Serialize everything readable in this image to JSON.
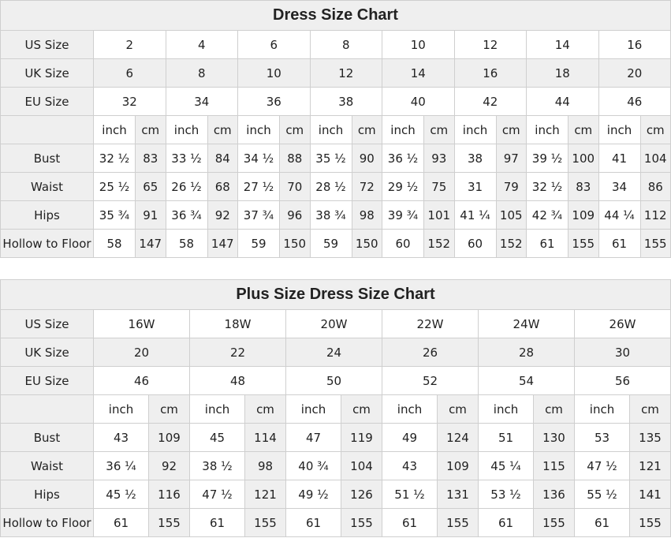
{
  "charts": [
    {
      "title": "Dress Size Chart",
      "row_labels": {
        "us": "US Size",
        "uk": "UK Size",
        "eu": "EU Size"
      },
      "us": [
        "2",
        "4",
        "6",
        "8",
        "10",
        "12",
        "14",
        "16"
      ],
      "uk": [
        "6",
        "8",
        "10",
        "12",
        "14",
        "16",
        "18",
        "20"
      ],
      "eu": [
        "32",
        "34",
        "36",
        "38",
        "40",
        "42",
        "44",
        "46"
      ],
      "unit_labels": {
        "inch": "inch",
        "cm": "cm"
      },
      "measurements": [
        {
          "label": "Bust",
          "values": [
            [
              "32 ½",
              "83"
            ],
            [
              "33 ½",
              "84"
            ],
            [
              "34 ½",
              "88"
            ],
            [
              "35 ½",
              "90"
            ],
            [
              "36 ½",
              "93"
            ],
            [
              "38",
              "97"
            ],
            [
              "39 ½",
              "100"
            ],
            [
              "41",
              "104"
            ]
          ]
        },
        {
          "label": "Waist",
          "values": [
            [
              "25 ½",
              "65"
            ],
            [
              "26 ½",
              "68"
            ],
            [
              "27 ½",
              "70"
            ],
            [
              "28 ½",
              "72"
            ],
            [
              "29 ½",
              "75"
            ],
            [
              "31",
              "79"
            ],
            [
              "32 ½",
              "83"
            ],
            [
              "34",
              "86"
            ]
          ]
        },
        {
          "label": "Hips",
          "values": [
            [
              "35 ¾",
              "91"
            ],
            [
              "36 ¾",
              "92"
            ],
            [
              "37 ¾",
              "96"
            ],
            [
              "38 ¾",
              "98"
            ],
            [
              "39 ¾",
              "101"
            ],
            [
              "41 ¼",
              "105"
            ],
            [
              "42 ¾",
              "109"
            ],
            [
              "44 ¼",
              "112"
            ]
          ]
        },
        {
          "label": "Hollow to Floor",
          "values": [
            [
              "58",
              "147"
            ],
            [
              "58",
              "147"
            ],
            [
              "59",
              "150"
            ],
            [
              "59",
              "150"
            ],
            [
              "60",
              "152"
            ],
            [
              "60",
              "152"
            ],
            [
              "61",
              "155"
            ],
            [
              "61",
              "155"
            ]
          ]
        }
      ]
    },
    {
      "title": "Plus Size Dress Size Chart",
      "row_labels": {
        "us": "US Size",
        "uk": "UK Size",
        "eu": "EU Size"
      },
      "us": [
        "16W",
        "18W",
        "20W",
        "22W",
        "24W",
        "26W"
      ],
      "uk": [
        "20",
        "22",
        "24",
        "26",
        "28",
        "30"
      ],
      "eu": [
        "46",
        "48",
        "50",
        "52",
        "54",
        "56"
      ],
      "unit_labels": {
        "inch": "inch",
        "cm": "cm"
      },
      "measurements": [
        {
          "label": "Bust",
          "values": [
            [
              "43",
              "109"
            ],
            [
              "45",
              "114"
            ],
            [
              "47",
              "119"
            ],
            [
              "49",
              "124"
            ],
            [
              "51",
              "130"
            ],
            [
              "53",
              "135"
            ]
          ]
        },
        {
          "label": "Waist",
          "values": [
            [
              "36 ¼",
              "92"
            ],
            [
              "38 ½",
              "98"
            ],
            [
              "40 ¾",
              "104"
            ],
            [
              "43",
              "109"
            ],
            [
              "45 ¼",
              "115"
            ],
            [
              "47 ½",
              "121"
            ]
          ]
        },
        {
          "label": "Hips",
          "values": [
            [
              "45 ½",
              "116"
            ],
            [
              "47 ½",
              "121"
            ],
            [
              "49 ½",
              "126"
            ],
            [
              "51 ½",
              "131"
            ],
            [
              "53 ½",
              "136"
            ],
            [
              "55 ½",
              "141"
            ]
          ]
        },
        {
          "label": "Hollow to Floor",
          "values": [
            [
              "61",
              "155"
            ],
            [
              "61",
              "155"
            ],
            [
              "61",
              "155"
            ],
            [
              "61",
              "155"
            ],
            [
              "61",
              "155"
            ],
            [
              "61",
              "155"
            ]
          ]
        }
      ]
    }
  ],
  "colors": {
    "header_bg": "#efefef",
    "border": "#cfcfcf"
  }
}
